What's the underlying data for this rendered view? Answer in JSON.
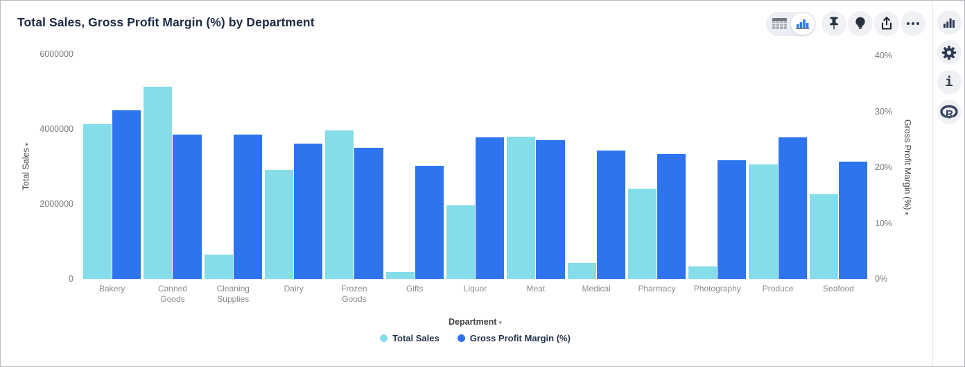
{
  "header": {
    "title": "Total Sales, Gross Profit Margin (%) by Department"
  },
  "toolbar": {
    "view_toggle": {
      "options": [
        "table-view",
        "chart-view"
      ],
      "active": "chart-view"
    },
    "buttons": [
      "pin",
      "insights",
      "export",
      "more-options"
    ]
  },
  "sidebar": {
    "buttons": [
      "chart-type",
      "settings",
      "info",
      "r-script"
    ]
  },
  "chart_data": {
    "type": "bar",
    "title": "Total Sales, Gross Profit Margin (%) by Department",
    "categories": [
      "Bakery",
      "Canned Goods",
      "Cleaning Supplies",
      "Dairy",
      "Frozen Goods",
      "Gifts",
      "Liquor",
      "Meat",
      "Medical",
      "Pharmacy",
      "Photography",
      "Produce",
      "Seafood"
    ],
    "series": [
      {
        "name": "Total Sales",
        "axis": "left",
        "color": "#84dde8",
        "values": [
          4130000,
          5130000,
          640000,
          2910000,
          3960000,
          180000,
          1970000,
          3790000,
          430000,
          2410000,
          340000,
          3060000,
          2260000
        ]
      },
      {
        "name": "Gross Profit Margin (%)",
        "axis": "right",
        "color": "#2e74ef",
        "values": [
          30.2,
          25.9,
          25.8,
          24.2,
          23.5,
          20.2,
          25.4,
          24.8,
          23.0,
          22.3,
          21.2,
          25.3,
          21.0
        ]
      }
    ],
    "xlabel": "Department",
    "left_axis": {
      "label": "Total Sales",
      "min": 0,
      "max": 6000000,
      "ticks": [
        "0",
        "2000000",
        "4000000",
        "6000000"
      ]
    },
    "right_axis": {
      "label": "Gross Profit Margin (%)",
      "min": 0,
      "max": 40,
      "ticks": [
        "0%",
        "10%",
        "20%",
        "30%",
        "40%"
      ]
    },
    "legend": [
      {
        "label": "Total Sales",
        "color": "#84dde8"
      },
      {
        "label": "Gross Profit Margin (%)",
        "color": "#2e74ef"
      }
    ],
    "grid": false,
    "legend_position": "bottom"
  }
}
